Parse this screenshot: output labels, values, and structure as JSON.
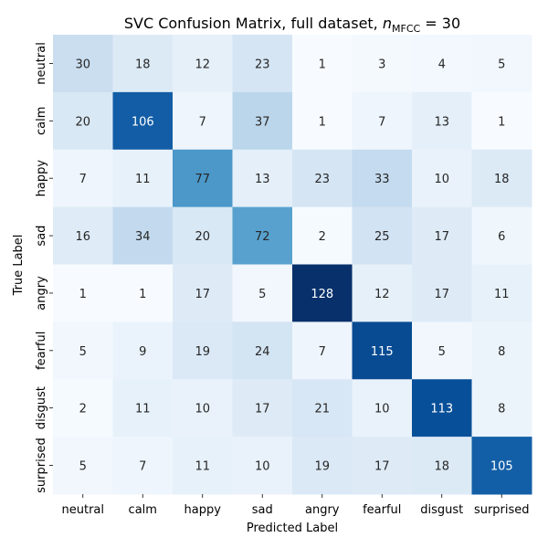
{
  "chart_data": {
    "type": "heatmap",
    "title": {
      "prefix": "SVC Confusion Matrix, full dataset, ",
      "var": "n",
      "sub": "MFCC",
      "suffix": " = 30"
    },
    "xlabel": "Predicted Label",
    "ylabel": "True Label",
    "x_categories": [
      "neutral",
      "calm",
      "happy",
      "sad",
      "angry",
      "fearful",
      "disgust",
      "surprised"
    ],
    "y_categories": [
      "neutral",
      "calm",
      "happy",
      "sad",
      "angry",
      "fearful",
      "disgust",
      "surprised"
    ],
    "values": [
      [
        30,
        18,
        12,
        23,
        1,
        3,
        4,
        5
      ],
      [
        20,
        106,
        7,
        37,
        1,
        7,
        13,
        1
      ],
      [
        7,
        11,
        77,
        13,
        23,
        33,
        10,
        18
      ],
      [
        16,
        34,
        20,
        72,
        2,
        25,
        17,
        6
      ],
      [
        1,
        1,
        17,
        5,
        128,
        12,
        17,
        11
      ],
      [
        5,
        9,
        19,
        24,
        7,
        115,
        5,
        8
      ],
      [
        2,
        11,
        10,
        17,
        21,
        10,
        113,
        8
      ],
      [
        5,
        7,
        11,
        10,
        19,
        17,
        18,
        105
      ]
    ],
    "colormap": "Blues",
    "vmin": 1,
    "vmax": 128,
    "colorbar": false,
    "grid": false,
    "annotations": true
  }
}
